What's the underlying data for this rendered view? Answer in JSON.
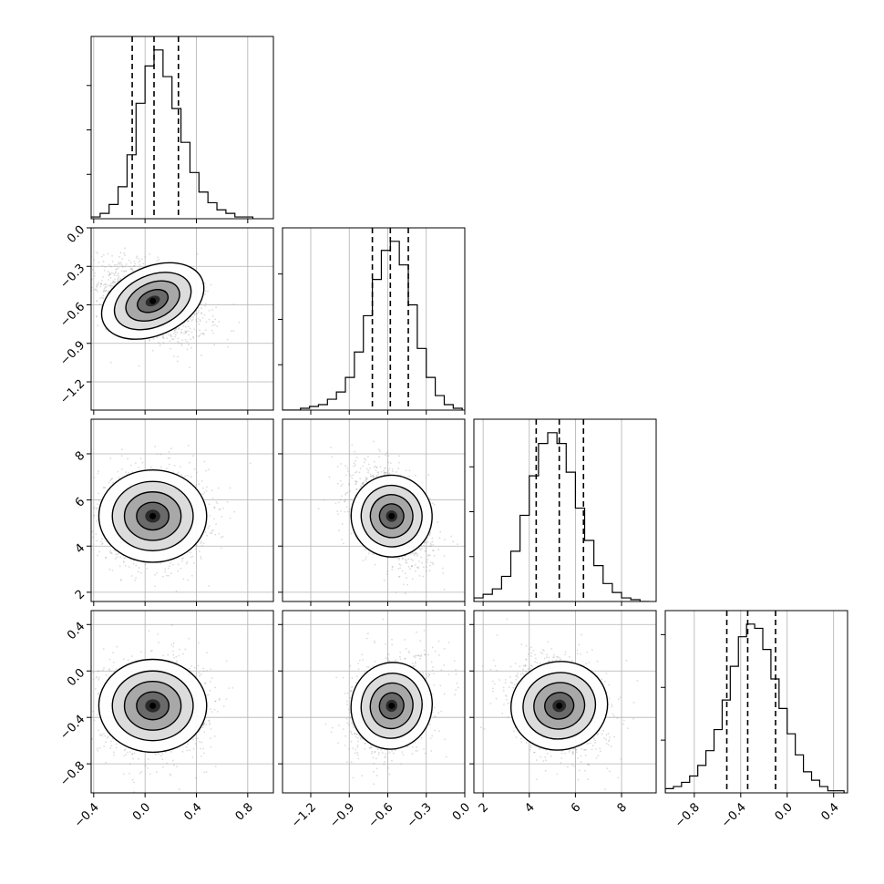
{
  "chart_data": {
    "type": "corner",
    "grid": true,
    "colors": {
      "hist": "#000000",
      "scatter": "#9a9a9a",
      "contour": "#000000",
      "grid": "#b0b0b0"
    },
    "params": [
      {
        "range": [
          -0.42,
          1.0
        ],
        "ticks": [
          -0.4,
          0.0,
          0.4,
          0.8
        ],
        "tick_labels": [
          "−0.4",
          "0.0",
          "0.4",
          "0.8"
        ],
        "grid_ticks": [
          -0.4,
          0.0,
          0.4,
          0.8
        ],
        "quantiles": [
          -0.1,
          0.07,
          0.26
        ],
        "mean": 0.06,
        "sd": 0.2,
        "hist_bins": [
          -0.42,
          -0.35,
          -0.28,
          -0.21,
          -0.14,
          -0.07,
          0.0,
          0.07,
          0.14,
          0.21,
          0.28,
          0.35,
          0.42,
          0.49,
          0.56,
          0.63,
          0.7,
          0.77,
          0.84
        ],
        "hist_counts": [
          1,
          3,
          8,
          18,
          36,
          65,
          86,
          95,
          80,
          62,
          43,
          26,
          15,
          9,
          5,
          3,
          1,
          1
        ]
      },
      {
        "range": [
          -1.42,
          0.0
        ],
        "ticks": [
          -1.2,
          -0.9,
          -0.6,
          -0.3,
          0.0
        ],
        "tick_labels": [
          "−1.2",
          "−0.9",
          "−0.6",
          "−0.3",
          "0.0"
        ],
        "grid_ticks": [
          -1.2,
          -0.9,
          -0.6,
          -0.3,
          0.0
        ],
        "quantiles": [
          -0.72,
          -0.58,
          -0.44
        ],
        "mean": -0.57,
        "sd": 0.15,
        "hist_bins": [
          -1.42,
          -1.35,
          -1.28,
          -1.21,
          -1.14,
          -1.07,
          -1.0,
          -0.93,
          -0.86,
          -0.79,
          -0.72,
          -0.65,
          -0.58,
          -0.51,
          -0.44,
          -0.37,
          -0.3,
          -0.23,
          -0.16,
          -0.09,
          -0.02
        ],
        "hist_counts": [
          0,
          0,
          1,
          2,
          3,
          6,
          10,
          18,
          32,
          52,
          72,
          88,
          93,
          80,
          58,
          34,
          18,
          8,
          3,
          1
        ]
      },
      {
        "range": [
          1.6,
          9.5
        ],
        "ticks": [
          2,
          4,
          6,
          8
        ],
        "tick_labels": [
          "2",
          "4",
          "6",
          "8"
        ],
        "grid_ticks": [
          2,
          4,
          6,
          8
        ],
        "quantiles": [
          4.3,
          5.3,
          6.35
        ],
        "mean": 5.3,
        "sd": 1.0,
        "hist_bins": [
          1.6,
          2.0,
          2.4,
          2.8,
          3.2,
          3.6,
          4.0,
          4.4,
          4.8,
          5.2,
          5.6,
          6.0,
          6.4,
          6.8,
          7.2,
          7.6,
          8.0,
          8.4,
          8.8,
          9.2
        ],
        "hist_counts": [
          2,
          4,
          7,
          14,
          28,
          48,
          70,
          88,
          94,
          88,
          72,
          52,
          34,
          20,
          10,
          5,
          2,
          1,
          0
        ]
      },
      {
        "range": [
          -1.05,
          0.52
        ],
        "ticks": [
          -0.8,
          -0.4,
          0.0,
          0.4
        ],
        "tick_labels": [
          "−0.8",
          "−0.4",
          "0.0",
          "0.4"
        ],
        "grid_ticks": [
          -0.8,
          -0.4,
          0.0,
          0.4
        ],
        "quantiles": [
          -0.52,
          -0.34,
          -0.1
        ],
        "mean": -0.3,
        "sd": 0.2,
        "hist_bins": [
          -1.05,
          -0.98,
          -0.91,
          -0.84,
          -0.77,
          -0.7,
          -0.63,
          -0.56,
          -0.49,
          -0.42,
          -0.35,
          -0.28,
          -0.21,
          -0.14,
          -0.07,
          0.0,
          0.07,
          0.14,
          0.21,
          0.28,
          0.35,
          0.42,
          0.49
        ],
        "hist_counts": [
          2,
          3,
          5,
          8,
          13,
          20,
          30,
          44,
          60,
          74,
          80,
          78,
          68,
          54,
          40,
          28,
          18,
          10,
          6,
          3,
          1,
          1
        ]
      }
    ],
    "correlations": [
      [
        1.0,
        -0.45,
        0.0,
        0.0
      ],
      [
        -0.45,
        1.0,
        -0.45,
        0.25
      ],
      [
        0.0,
        -0.45,
        1.0,
        -0.2
      ],
      [
        0.0,
        0.25,
        -0.2,
        1.0
      ]
    ]
  }
}
